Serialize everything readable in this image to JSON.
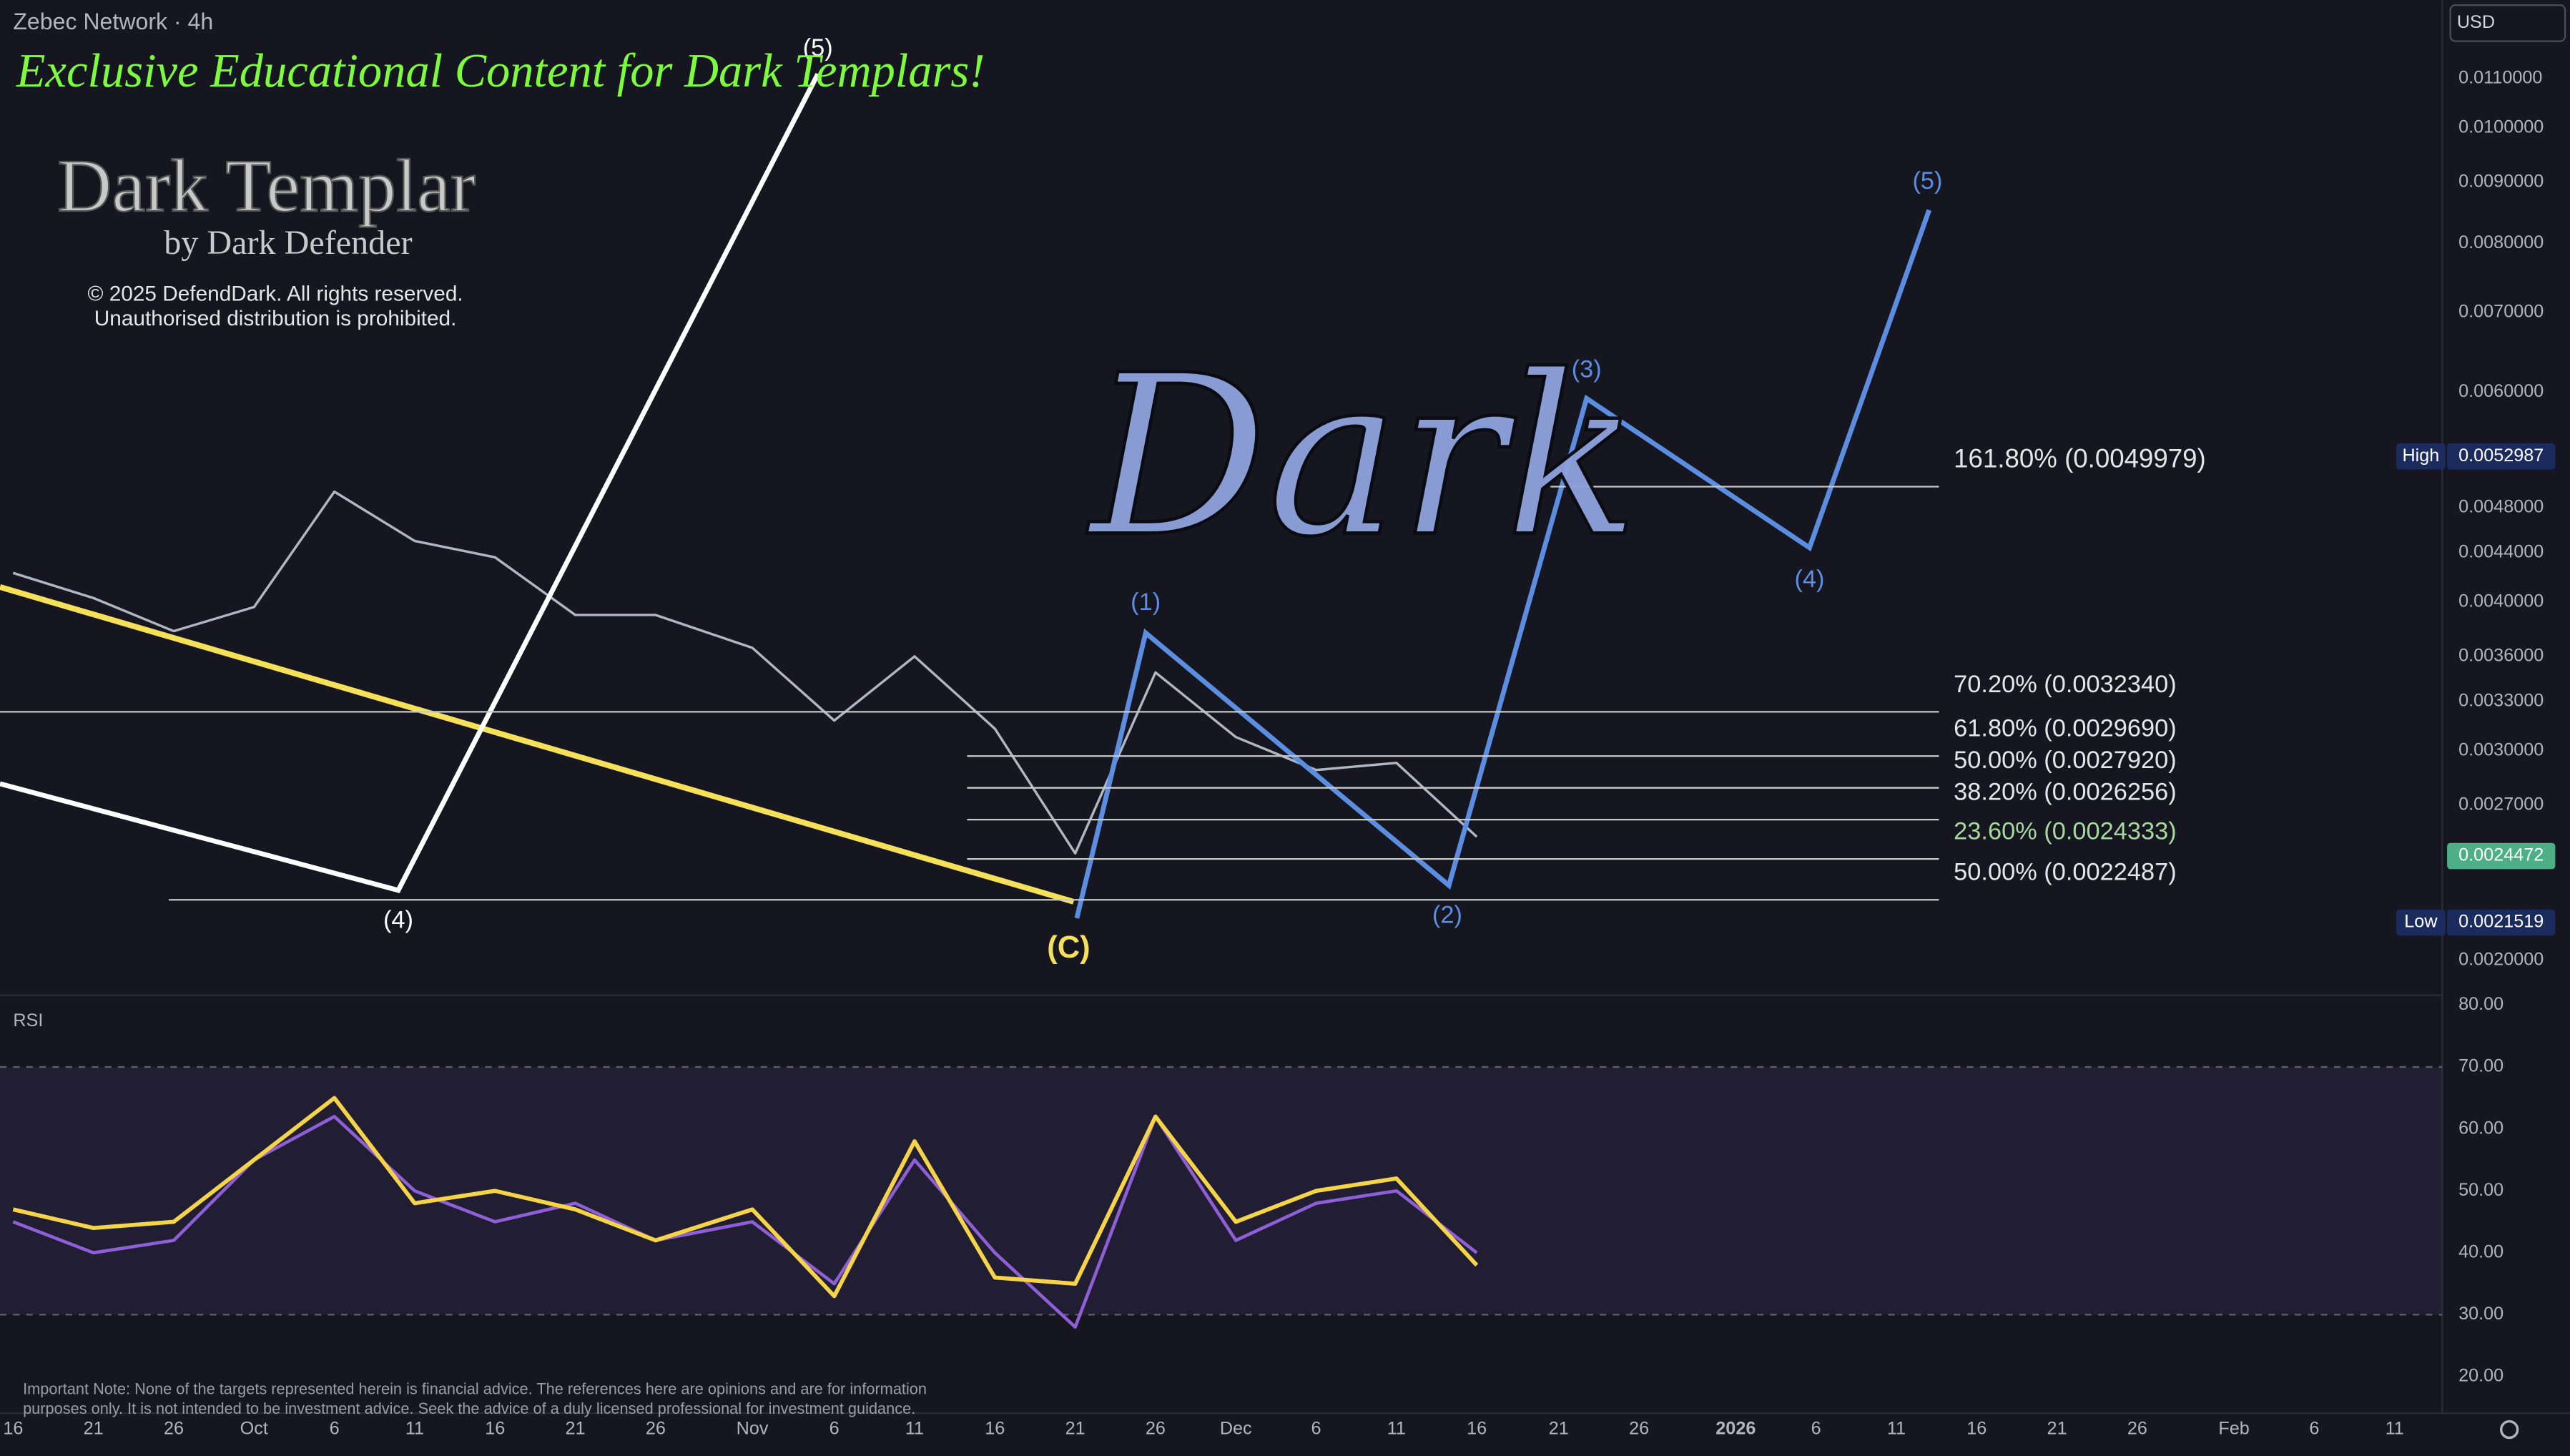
{
  "header": {
    "symbol": "Zebec Network · 4h",
    "currency": "USD"
  },
  "watermark": {
    "banner": "Exclusive Educational Content for Dark Templars!",
    "logo": "Dark Templar",
    "byline": "by Dark Defender",
    "copyright": [
      "© 2025 DefendDark. All rights reserved.",
      "Unauthorised distribution is prohibited."
    ],
    "stamp": "Dark"
  },
  "chart_data": [
    {
      "type": "line",
      "categories": [
        "16",
        "21",
        "26",
        "Oct",
        "6",
        "11",
        "16",
        "21",
        "26",
        "Nov",
        "6",
        "11",
        "16",
        "21",
        "26",
        "Dec",
        "6",
        "11",
        "16",
        "21",
        "26",
        "2026",
        "6",
        "11",
        "16",
        "21",
        "26",
        "Feb",
        "6",
        "11"
      ],
      "series": [
        {
          "color": "#b0b6c4",
          "values": [
            0.00423,
            0.00403,
            0.00378,
            0.00396,
            0.00495,
            0.0045,
            0.00436,
            0.0039,
            0.0039,
            0.00366,
            0.00318,
            0.0036,
            0.00313,
            0.00246,
            0.00349,
            0.00308,
            0.00289,
            0.00293,
            0.00254,
            null,
            null,
            null,
            null,
            null,
            null,
            null,
            null,
            null,
            null,
            null
          ]
        }
      ],
      "log": true,
      "ylim": [
        0.00187,
        0.0128
      ],
      "yticks": [
        {
          "value": 0.011,
          "label": "0.0110000"
        },
        {
          "value": 0.01,
          "label": "0.0100000"
        },
        {
          "value": 0.009,
          "label": "0.0090000"
        },
        {
          "value": 0.008,
          "label": "0.0080000"
        },
        {
          "value": 0.007,
          "label": "0.0070000"
        },
        {
          "value": 0.006,
          "label": "0.0060000"
        },
        {
          "value": 0.0048,
          "label": "0.0048000"
        },
        {
          "value": 0.0044,
          "label": "0.0044000"
        },
        {
          "value": 0.004,
          "label": "0.0040000"
        },
        {
          "value": 0.0036,
          "label": "0.0036000"
        },
        {
          "value": 0.0033,
          "label": "0.0033000"
        },
        {
          "value": 0.003,
          "label": "0.0030000"
        },
        {
          "value": 0.0027,
          "label": "0.0027000"
        },
        {
          "value": 0.002,
          "label": "0.0020000"
        }
      ],
      "fib_levels": [
        {
          "label": "161.80% (0.0049979)",
          "value": 0.0049979
        },
        {
          "label": "70.20% (0.0032340)",
          "value": 0.003234
        },
        {
          "label": "61.80% (0.0029690)",
          "value": 0.002969
        },
        {
          "label": "50.00% (0.0027920)",
          "value": 0.002792
        },
        {
          "label": "38.20% (0.0026256)",
          "value": 0.0026256
        },
        {
          "label": "23.60% (0.0024333)",
          "value": 0.0024333
        },
        {
          "label": "50.00% (0.0022487)",
          "value": 0.0022487
        }
      ],
      "badges": [
        {
          "label": "High",
          "value": 0.0052987,
          "color": "#1c2b5e"
        },
        {
          "value": 0.0024472,
          "color": "#4caf85"
        },
        {
          "label": "Low",
          "value": 0.0021519,
          "color": "#1c2b5e"
        }
      ],
      "waves": [
        "(5)",
        "(4)",
        "(C)",
        "(1)",
        "(2)",
        "(3)",
        "(4)",
        "(5)"
      ]
    },
    {
      "type": "line",
      "title": "RSI",
      "series": [
        {
          "color": "#8e5fd6",
          "values": [
            45,
            40,
            42,
            55,
            62,
            50,
            45,
            48,
            42,
            45,
            35,
            55,
            40,
            28,
            62,
            42,
            48,
            50,
            40
          ]
        },
        {
          "color": "#f5d547",
          "values": [
            47,
            44,
            45,
            55,
            65,
            48,
            50,
            47,
            42,
            47,
            33,
            58,
            36,
            35,
            62,
            45,
            50,
            52,
            38
          ]
        }
      ],
      "ylim": [
        14.1,
        81.6
      ],
      "yticks": [
        {
          "value": 80,
          "label": "80.00"
        },
        {
          "value": 70,
          "label": "70.00"
        },
        {
          "value": 60,
          "label": "60.00"
        },
        {
          "value": 50,
          "label": "50.00"
        },
        {
          "value": 40,
          "label": "40.00"
        },
        {
          "value": 30,
          "label": "30.00"
        },
        {
          "value": 20,
          "label": "20.00"
        }
      ],
      "bands": [
        70,
        30
      ]
    }
  ],
  "note": [
    "Important Note: None of the targets represented herein is financial advice. The references here are opinions and are for information",
    "purposes only. It is not intended to be investment advice. Seek the advice of a duly licensed professional for investment guidance."
  ]
}
